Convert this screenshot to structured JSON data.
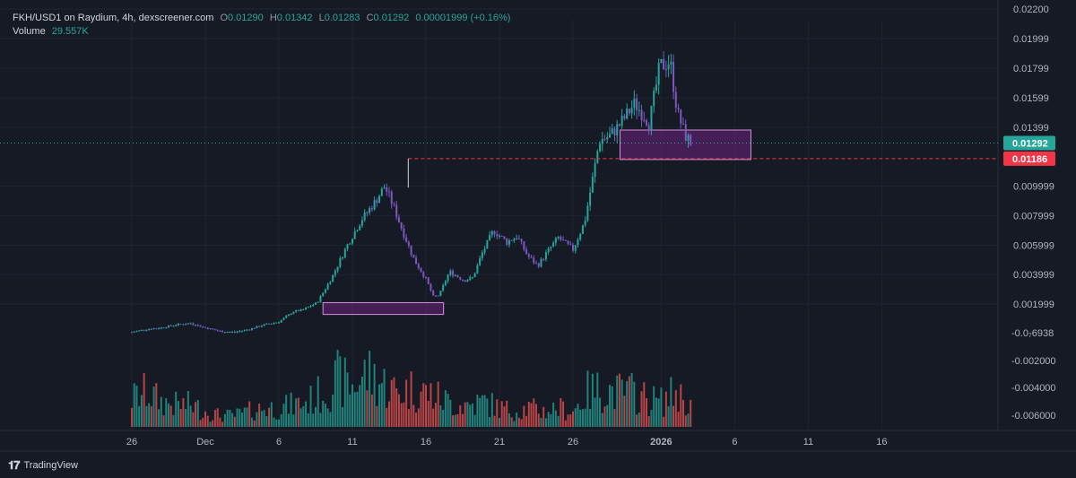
{
  "header": {
    "symbol": "FKH/USD1 on Raydium, 4h, dexscreener.com",
    "open_label": "O",
    "open": "0.01290",
    "high_label": "H",
    "high": "0.01342",
    "low_label": "L",
    "low": "0.01283",
    "close_label": "C",
    "close": "0.01292",
    "change": "0.00001999 (+0.16%)",
    "volume_label": "Volume",
    "volume": "29.557K"
  },
  "branding": {
    "text": "TradingView"
  },
  "colors": {
    "up": "#26a69a",
    "down": "#7e57c2",
    "vol_up": "#26a69a",
    "vol_down": "#ef5350",
    "background": "#161a25",
    "zone": "#9c27b0",
    "last_price": "#26a69a",
    "level": "#f23645"
  },
  "chart_data": {
    "type": "candlestick",
    "price_axis_ticks": [
      "0.02200",
      "0.01999",
      "0.01799",
      "0.01599",
      "0.01399",
      "0.009999",
      "0.007999",
      "0.005999",
      "0.003999",
      "0.001999"
    ],
    "price_axis_tick_values": [
      0.022,
      0.01999,
      0.01799,
      0.01599,
      0.01399,
      0.009999,
      0.007999,
      0.005999,
      0.003999,
      0.001999
    ],
    "volume_axis_ticks": [
      "-0.0₇6938",
      "-0.002000",
      "-0.004000",
      "-0.006000"
    ],
    "time_axis_ticks": [
      "26",
      "Dec",
      "6",
      "11",
      "16",
      "21",
      "26",
      "2026",
      "6",
      "11",
      "16"
    ],
    "time_axis_tick_days": [
      0,
      5,
      10,
      15,
      20,
      25,
      30,
      36,
      41,
      46,
      51
    ],
    "last_price": {
      "label": "0.01292",
      "value": 0.01292
    },
    "level_line": {
      "label": "0.01186",
      "value": 0.01186,
      "style": "dashed"
    },
    "zones": [
      {
        "from_day": 13.0,
        "to_day": 21.2,
        "low": 0.0013,
        "high": 0.0021
      },
      {
        "from_day": 33.2,
        "to_day": 42.1,
        "low": 0.0118,
        "high": 0.0138
      }
    ],
    "price_anchors": [
      [
        0,
        0.0001
      ],
      [
        1,
        0.0003
      ],
      [
        2,
        0.0004
      ],
      [
        3,
        0.0006
      ],
      [
        4,
        0.0007
      ],
      [
        5,
        0.0004
      ],
      [
        6,
        0.00015
      ],
      [
        7,
        0.0001
      ],
      [
        8,
        0.0003
      ],
      [
        9,
        0.0006
      ],
      [
        10,
        0.0008
      ],
      [
        11,
        0.0015
      ],
      [
        11.6,
        0.0016
      ],
      [
        12.6,
        0.0021
      ],
      [
        13.6,
        0.0038
      ],
      [
        14.6,
        0.0059
      ],
      [
        15.6,
        0.0077
      ],
      [
        16.6,
        0.009
      ],
      [
        17.2,
        0.01
      ],
      [
        17.8,
        0.0086
      ],
      [
        18.4,
        0.007
      ],
      [
        19.2,
        0.005
      ],
      [
        20.0,
        0.0037
      ],
      [
        20.5,
        0.0025
      ],
      [
        20.9,
        0.0026
      ],
      [
        21.6,
        0.0042
      ],
      [
        22.6,
        0.0036
      ],
      [
        23.2,
        0.0038
      ],
      [
        23.8,
        0.0054
      ],
      [
        24.6,
        0.007
      ],
      [
        25.5,
        0.0062
      ],
      [
        26.2,
        0.0066
      ],
      [
        26.9,
        0.0053
      ],
      [
        27.6,
        0.0046
      ],
      [
        28.3,
        0.0056
      ],
      [
        29.0,
        0.0065
      ],
      [
        30.0,
        0.0057
      ],
      [
        30.8,
        0.0076
      ],
      [
        31.3,
        0.0103
      ],
      [
        31.8,
        0.0131
      ],
      [
        32.5,
        0.0134
      ],
      [
        33.2,
        0.0142
      ],
      [
        34.2,
        0.0156
      ],
      [
        35.2,
        0.0143
      ],
      [
        35.9,
        0.0181
      ],
      [
        36.6,
        0.0185
      ],
      [
        37.1,
        0.015
      ],
      [
        37.6,
        0.0135
      ],
      [
        38.0,
        0.01292
      ]
    ],
    "volume_anchors": [
      [
        0,
        0.45
      ],
      [
        1,
        0.55
      ],
      [
        2,
        0.4
      ],
      [
        3,
        0.35
      ],
      [
        4,
        0.35
      ],
      [
        5,
        0.25
      ],
      [
        6,
        0.18
      ],
      [
        7,
        0.18
      ],
      [
        8,
        0.25
      ],
      [
        9,
        0.3
      ],
      [
        10,
        0.3
      ],
      [
        11,
        0.35
      ],
      [
        12,
        0.4
      ],
      [
        13,
        0.55
      ],
      [
        14,
        0.75
      ],
      [
        15,
        0.65
      ],
      [
        16,
        0.85
      ],
      [
        17,
        0.7
      ],
      [
        18,
        0.55
      ],
      [
        19,
        0.6
      ],
      [
        20,
        0.55
      ],
      [
        21,
        0.45
      ],
      [
        22,
        0.35
      ],
      [
        23,
        0.35
      ],
      [
        24,
        0.4
      ],
      [
        25,
        0.3
      ],
      [
        26,
        0.25
      ],
      [
        27,
        0.3
      ],
      [
        28,
        0.25
      ],
      [
        29,
        0.3
      ],
      [
        30,
        0.25
      ],
      [
        31,
        0.55
      ],
      [
        32,
        0.6
      ],
      [
        33,
        0.55
      ],
      [
        34,
        0.55
      ],
      [
        35,
        0.45
      ],
      [
        36,
        0.4
      ],
      [
        37,
        0.55
      ],
      [
        38,
        0.35
      ]
    ]
  }
}
